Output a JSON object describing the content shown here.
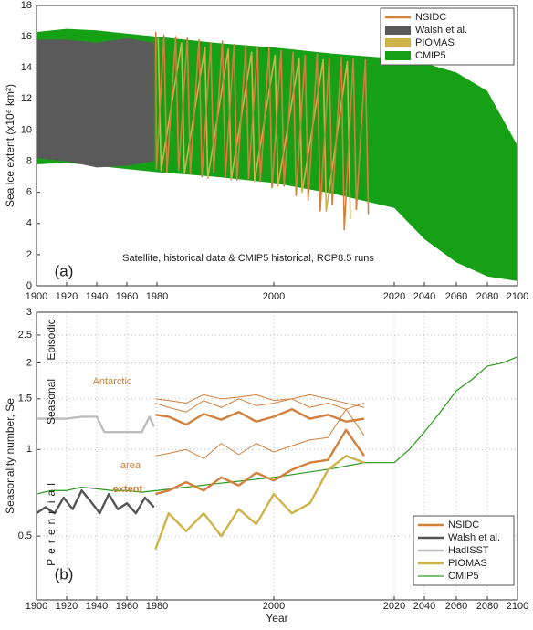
{
  "chart_data": [
    {
      "type": "area",
      "ylabel": "Sea ice extent (x10⁶ km²)",
      "xlim": [
        1900,
        2100
      ],
      "xticks": [
        1900,
        1920,
        1940,
        1960,
        1980,
        2000,
        2020,
        2040,
        2060,
        2080,
        2100
      ],
      "ylim": [
        0,
        18
      ],
      "yticks": [
        0,
        2,
        4,
        6,
        8,
        10,
        12,
        14,
        16,
        18
      ],
      "grid": false,
      "legend": "upper right",
      "annotations": [
        "(a)",
        "Satellite, historical data & CMIP5 historical, RCP8.5 runs"
      ],
      "series": [
        {
          "name": "NSIDC",
          "color": "#d2803c",
          "marker": "line",
          "x": [
            1979.2,
            1979.7,
            1981.2,
            1981.7,
            1983.2,
            1983.7,
            1985.2,
            1985.7,
            1987.2,
            1987.7,
            1989.2,
            1989.7,
            1991.2,
            1991.7,
            1993.2,
            1993.7,
            1995.2,
            1995.7,
            1997.2,
            1997.7,
            1999.2,
            1999.7,
            2001.2,
            2001.7,
            2003.2,
            2003.7,
            2005.2,
            2005.7,
            2007.2,
            2007.7,
            2009.2,
            2009.7,
            2011.2,
            2011.7,
            2013.2,
            2013.7,
            2015.2,
            2015.7
          ],
          "values": [
            16.3,
            7.5,
            16.1,
            7.3,
            16.0,
            7.4,
            15.9,
            7.2,
            15.8,
            7.0,
            15.6,
            7.3,
            15.7,
            7.0,
            15.5,
            6.8,
            15.4,
            6.9,
            15.3,
            6.7,
            15.3,
            6.3,
            15.1,
            6.4,
            15.0,
            5.8,
            14.8,
            5.5,
            14.9,
            4.8,
            14.6,
            5.2,
            14.7,
            3.6,
            14.6,
            4.9,
            14.5,
            4.6
          ]
        },
        {
          "name": "Walsh et al.",
          "color": "#5a5a5a",
          "marker": "patch",
          "x": [
            1900,
            1920,
            1940,
            1960,
            1978
          ],
          "values": [
            15.8,
            15.8,
            15.6,
            15.9,
            15.6
          ],
          "lower": [
            8.2,
            8.0,
            7.6,
            7.7,
            8.0
          ]
        },
        {
          "name": "PIOMAS",
          "color": "#cdb34a",
          "marker": "patch",
          "x": [
            1980.2,
            1980.7,
            1984.2,
            1984.7,
            1988.2,
            1988.7,
            1992.2,
            1992.7,
            1996.2,
            1996.7,
            2000.2,
            2000.7,
            2004.2,
            2004.7,
            2008.2,
            2008.7,
            2012.2,
            2012.7
          ],
          "values": [
            15.9,
            7.4,
            15.6,
            7.2,
            15.3,
            6.9,
            15.2,
            6.8,
            15.0,
            6.7,
            14.8,
            6.4,
            14.6,
            6.0,
            14.5,
            4.8,
            14.4,
            4.3
          ]
        },
        {
          "name": "CMIP5",
          "color": "#16a016",
          "marker": "patch",
          "x": [
            1900,
            1920,
            1940,
            1960,
            1980,
            1990,
            2000,
            2010,
            2020,
            2040,
            2060,
            2080,
            2100
          ],
          "values": [
            16.3,
            16.5,
            16.4,
            16.2,
            16.0,
            15.6,
            15.3,
            14.9,
            14.6,
            14.3,
            13.7,
            12.5,
            9.0
          ],
          "lower": [
            7.8,
            7.9,
            7.7,
            7.5,
            7.3,
            7.0,
            6.6,
            5.9,
            5.0,
            3.0,
            1.5,
            0.6,
            0.3
          ]
        }
      ]
    },
    {
      "type": "line",
      "ylabel": "Seasonality number, Se",
      "xlabel": "Year",
      "xlim": [
        1900,
        2100
      ],
      "xticks": [
        1900,
        1920,
        1940,
        1960,
        1980,
        2000,
        2020,
        2040,
        2060,
        2080,
        2100
      ],
      "ylim": [
        0.3,
        3
      ],
      "yticks": [
        0.5,
        1,
        1.5,
        2,
        2.5,
        3
      ],
      "log_y": true,
      "grid": true,
      "legend": "lower right",
      "annotations": [
        "(b)",
        "Antarctic",
        "area",
        "extent",
        "Episodic",
        "Seasonal",
        "Perennial"
      ],
      "series": [
        {
          "name": "NSIDC",
          "color": "#d2803c",
          "width": 2.4,
          "x": [
            1979,
            1982,
            1985,
            1988,
            1991,
            1994,
            1997,
            2000,
            2003,
            2006,
            2009,
            2012,
            2015
          ],
          "values": [
            0.7,
            0.72,
            0.77,
            0.72,
            0.8,
            0.75,
            0.83,
            0.78,
            0.85,
            0.9,
            0.92,
            1.17,
            0.95
          ]
        },
        {
          "name": "Walsh et al.",
          "color": "#555555",
          "width": 2.4,
          "x": [
            1900,
            1906,
            1912,
            1918,
            1924,
            1930,
            1936,
            1942,
            1948,
            1954,
            1960,
            1966,
            1972,
            1978
          ],
          "values": [
            0.6,
            0.63,
            0.6,
            0.68,
            0.62,
            0.72,
            0.66,
            0.6,
            0.7,
            0.62,
            0.65,
            0.6,
            0.68,
            0.63
          ]
        },
        {
          "name": "HadISST",
          "color": "#bdbdbd",
          "width": 2.4,
          "x": [
            1900,
            1910,
            1920,
            1930,
            1940,
            1945,
            1950,
            1960,
            1970,
            1975,
            1978
          ],
          "values": [
            1.28,
            1.28,
            1.28,
            1.3,
            1.3,
            1.15,
            1.15,
            1.15,
            1.15,
            1.3,
            1.2
          ]
        },
        {
          "name": "PIOMAS",
          "color": "#cdb34a",
          "width": 2.4,
          "x": [
            1979,
            1982,
            1985,
            1988,
            1991,
            1994,
            1997,
            2000,
            2003,
            2006,
            2009,
            2012,
            2015
          ],
          "values": [
            0.45,
            0.6,
            0.52,
            0.6,
            0.5,
            0.62,
            0.55,
            0.7,
            0.6,
            0.65,
            0.85,
            0.95,
            0.9
          ]
        },
        {
          "name": "CMIP5",
          "color": "#2a9a1a",
          "width": 1.2,
          "x": [
            1900,
            1910,
            1920,
            1930,
            1940,
            1950,
            1960,
            1970,
            1980,
            1990,
            2000,
            2010,
            2015,
            2020,
            2030,
            2040,
            2050,
            2060,
            2070,
            2080,
            2090,
            2100
          ],
          "values": [
            0.7,
            0.72,
            0.72,
            0.74,
            0.73,
            0.72,
            0.72,
            0.71,
            0.72,
            0.76,
            0.8,
            0.86,
            0.9,
            0.9,
            1.0,
            1.15,
            1.35,
            1.6,
            1.75,
            1.95,
            2.0,
            2.1
          ]
        },
        {
          "color": "#d2803c",
          "width": 1,
          "x": [
            1979,
            1982,
            1985,
            1988,
            1991,
            1994,
            1997,
            2000,
            2003,
            2006,
            2009,
            2012,
            2015
          ],
          "values": [
            0.95,
            0.97,
            1.0,
            0.93,
            1.05,
            0.96,
            1.05,
            0.98,
            1.03,
            1.08,
            1.1,
            1.38,
            1.12
          ]
        },
        {
          "color": "#d2803c",
          "width": 2.4,
          "x": [
            1979,
            1982,
            1985,
            1988,
            1991,
            1994,
            1997,
            2000,
            2003,
            2006,
            2009,
            2012,
            2015
          ],
          "values": [
            1.32,
            1.3,
            1.22,
            1.33,
            1.27,
            1.35,
            1.25,
            1.3,
            1.38,
            1.28,
            1.32,
            1.25,
            1.28
          ]
        },
        {
          "color": "#d2803c",
          "width": 1,
          "x": [
            1979,
            1982,
            1985,
            1988,
            1991,
            1994,
            1997,
            2000,
            2003,
            2006,
            2009,
            2012,
            2015
          ],
          "values": [
            1.45,
            1.4,
            1.35,
            1.48,
            1.4,
            1.5,
            1.42,
            1.45,
            1.5,
            1.4,
            1.45,
            1.38,
            1.45
          ]
        },
        {
          "color": "#d2803c",
          "width": 1,
          "x": [
            1979,
            1982,
            1985,
            1988,
            1991,
            1994,
            1997,
            2000,
            2003,
            2006,
            2009,
            2012,
            2015
          ],
          "values": [
            1.5,
            1.48,
            1.45,
            1.55,
            1.5,
            1.52,
            1.55,
            1.48,
            1.5,
            1.55,
            1.5,
            1.45,
            1.4
          ]
        }
      ]
    }
  ]
}
